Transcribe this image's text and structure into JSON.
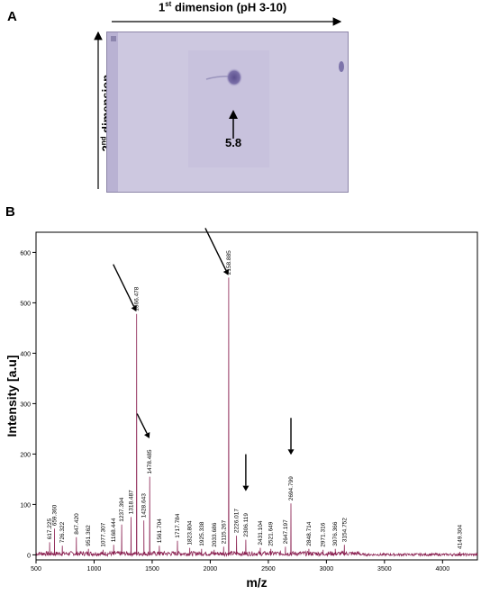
{
  "panel_a": {
    "letter": "A",
    "first_dimension_prefix": "1",
    "first_dimension_sup": "st",
    "first_dimension_rest": " dimension (pH 3-10)",
    "second_dimension_prefix": "2",
    "second_dimension_sup": "nd",
    "second_dimension_rest": " dimension",
    "spot_label": "5.8"
  },
  "panel_b": {
    "letter": "B"
  },
  "chart_data": {
    "type": "line",
    "title": "",
    "xlabel": "m/z",
    "ylabel": "Intensity [a.u]",
    "xlim": [
      500,
      4300
    ],
    "ylim": [
      -10,
      640
    ],
    "x_ticks": [
      500,
      1000,
      1500,
      2000,
      2500,
      3000,
      3500,
      4000
    ],
    "x_tick_labels": [
      "500",
      "1000",
      "1500",
      "2000",
      "2500",
      "3000",
      "3500",
      "4000"
    ],
    "y_ticks": [
      0,
      100,
      200,
      300,
      400,
      500,
      600
    ],
    "series_color": "#8b2252",
    "peaks": [
      {
        "mz": 617.225,
        "label": "617.225",
        "intensity": 25
      },
      {
        "mz": 659.36,
        "label": "659.360",
        "intensity": 52
      },
      {
        "mz": 726.322,
        "label": "726.322",
        "intensity": 18
      },
      {
        "mz": 847.42,
        "label": "847.420",
        "intensity": 35
      },
      {
        "mz": 951.362,
        "label": "951.362",
        "intensity": 12
      },
      {
        "mz": 1077.307,
        "label": "1077.307",
        "intensity": 10
      },
      {
        "mz": 1168.444,
        "label": "1168.444",
        "intensity": 20
      },
      {
        "mz": 1237.394,
        "label": "1237.394",
        "intensity": 60
      },
      {
        "mz": 1318.487,
        "label": "1318.487",
        "intensity": 75
      },
      {
        "mz": 1366.478,
        "label": "1366.478",
        "intensity": 478
      },
      {
        "mz": 1428.643,
        "label": "1428.643",
        "intensity": 68
      },
      {
        "mz": 1478.485,
        "label": "1478.485",
        "intensity": 155
      },
      {
        "mz": 1561.704,
        "label": "1561.704",
        "intensity": 18
      },
      {
        "mz": 1717.784,
        "label": "1717.784",
        "intensity": 28
      },
      {
        "mz": 1823.804,
        "label": "1823.804",
        "intensity": 14
      },
      {
        "mz": 1925.338,
        "label": "1925.338",
        "intensity": 12
      },
      {
        "mz": 2033.686,
        "label": "2033.686",
        "intensity": 10
      },
      {
        "mz": 2115.267,
        "label": "2115.267",
        "intensity": 16
      },
      {
        "mz": 2158.885,
        "label": "2158.885",
        "intensity": 550
      },
      {
        "mz": 2226.017,
        "label": "2226.017",
        "intensity": 38
      },
      {
        "mz": 2306.119,
        "label": "2306.119",
        "intensity": 30
      },
      {
        "mz": 2431.104,
        "label": "2431.104",
        "intensity": 14
      },
      {
        "mz": 2521.649,
        "label": "2521.649",
        "intensity": 12
      },
      {
        "mz": 2647.197,
        "label": "2647.197",
        "intensity": 16
      },
      {
        "mz": 2694.799,
        "label": "2694.799",
        "intensity": 102
      },
      {
        "mz": 2848.714,
        "label": "2848.714",
        "intensity": 12
      },
      {
        "mz": 2971.316,
        "label": "2971.316",
        "intensity": 10
      },
      {
        "mz": 3076.366,
        "label": "3076.366",
        "intensity": 12
      },
      {
        "mz": 3154.752,
        "label": "3154.752",
        "intensity": 20
      },
      {
        "mz": 4149.304,
        "label": "4149.304",
        "intensity": 6
      }
    ],
    "marked_peaks_mz": [
      1366.478,
      1478.485,
      2158.885,
      2306.119,
      2694.799
    ]
  }
}
